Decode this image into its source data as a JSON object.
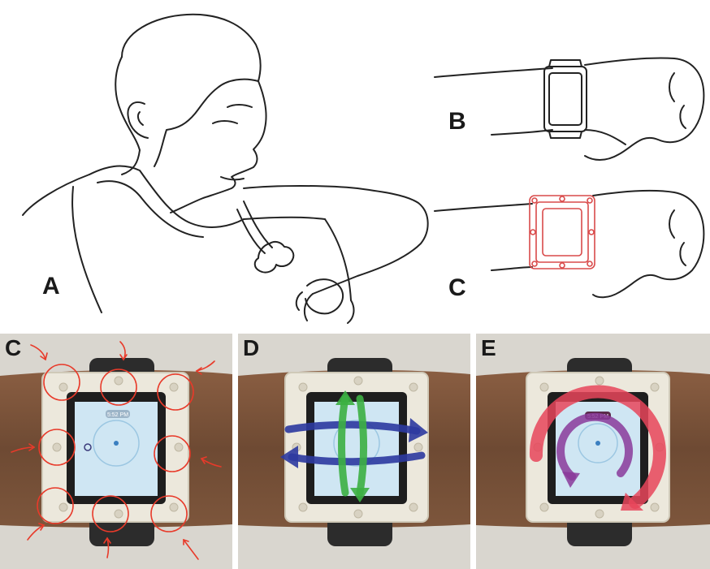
{
  "figure": {
    "panels": [
      {
        "id": "A",
        "label": "A",
        "content": "person-blowing-on-smartwatch-illustration"
      },
      {
        "id": "B",
        "label": "B",
        "content": "arm-with-plain-smartwatch-illustration"
      },
      {
        "id": "C_top",
        "label": "C",
        "content": "arm-with-smartwatch-and-sensor-frame-illustration"
      },
      {
        "id": "C_photo",
        "label": "C",
        "content": "photo-blow-targets-around-frame"
      },
      {
        "id": "D",
        "label": "D",
        "content": "photo-swipe-gestures"
      },
      {
        "id": "E",
        "label": "E",
        "content": "photo-circular-gesture"
      }
    ],
    "watch_screen": {
      "time_c": "5:52 PM",
      "time_e": "5:52 PM"
    }
  },
  "colors": {
    "line": "#222222",
    "frame_red": "#d94a4a",
    "target_red": "#e83a2a",
    "swipe_blue": "#2d3aa0",
    "swipe_green": "#3cb043",
    "circle_red": "#e8455a",
    "circle_purple": "#8a3a9a",
    "skin": "#6e4a33",
    "frame_white": "#ece8dc",
    "screen": "#cfe6f3"
  }
}
